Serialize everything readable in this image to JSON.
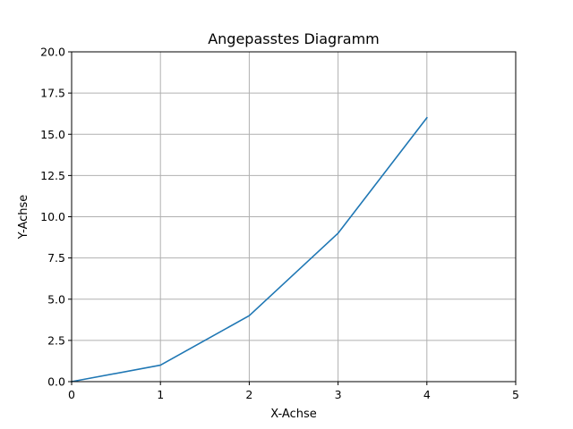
{
  "chart_data": {
    "type": "line",
    "title": "Angepasstes Diagramm",
    "xlabel": "X-Achse",
    "ylabel": "Y-Achse",
    "xlim": [
      0,
      5
    ],
    "ylim": [
      0,
      20
    ],
    "grid": true,
    "x_ticks": [
      0,
      1,
      2,
      3,
      4,
      5
    ],
    "x_tick_labels": [
      "0",
      "1",
      "2",
      "3",
      "4",
      "5"
    ],
    "y_ticks": [
      0,
      2.5,
      5,
      7.5,
      10,
      12.5,
      15,
      17.5,
      20
    ],
    "y_tick_labels": [
      "0.0",
      "2.5",
      "5.0",
      "7.5",
      "10.0",
      "12.5",
      "15.0",
      "17.5",
      "20.0"
    ],
    "series": [
      {
        "x": [
          0,
          1,
          2,
          3,
          4
        ],
        "y": [
          0,
          1,
          4,
          9,
          16
        ],
        "color": "#1f77b4"
      }
    ],
    "grid_color": "#b0b0b0"
  }
}
